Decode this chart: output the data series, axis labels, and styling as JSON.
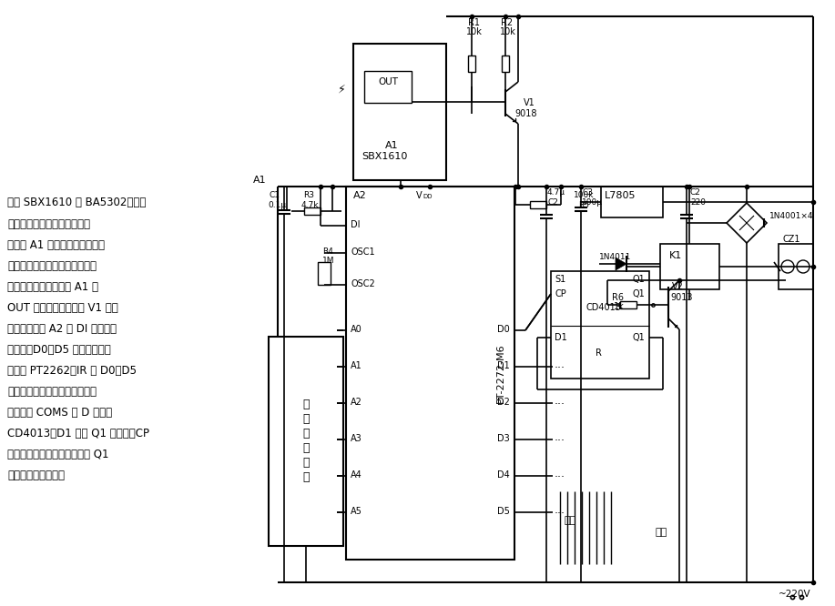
{
  "bg": "#ffffff",
  "lc": "#000000",
  "text_lines": [
    [
      278,
      193,
      "A1",
      8
    ],
    [
      8,
      216,
      "选用 SBX1610 或 BA5302，它是",
      8.5
    ],
    [
      8,
      240,
      "红外放大、解调一体化组件成",
      8.5
    ],
    [
      8,
      263,
      "品，当 A1 的感光窗接收到由发",
      8.5
    ],
    [
      8,
      286,
      "射器发来的红外线调制信号时，",
      8.5
    ],
    [
      8,
      309,
      "经内部电路处理后，从 A1 的",
      8.5
    ],
    [
      8,
      332,
      "OUT 端输出，经三极管 V1 放大",
      8.5
    ],
    [
      8,
      355,
      "倒相后，送到 A2 的 DI 端，解码",
      8.5
    ],
    [
      8,
      378,
      "正确时，D0～D5 端输出信号与",
      8.5
    ],
    [
      8,
      401,
      "发射器 PT2262－IR 的 D0～D5",
      8.5
    ],
    [
      8,
      424,
      "端的输出信号相对应。控制电路",
      8.5
    ],
    [
      8,
      447,
      "芯片选用 COMS 双 D 触发器",
      8.5
    ],
    [
      8,
      470,
      "CD4013，D1 端与 Q1 端相连，CP",
      8.5
    ],
    [
      8,
      493,
      "每接收到一个正脉冲，输出端 Q1",
      8.5
    ],
    [
      8,
      516,
      "的信号就翻转一次。",
      8.5
    ]
  ]
}
